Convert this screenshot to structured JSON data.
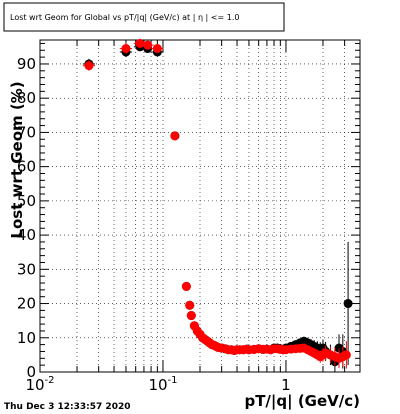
{
  "chart_data": {
    "type": "scatter",
    "title": "Lost wrt Geom for Global vs pT/|q| (GeV/c) at | η | <= 1.0",
    "xlabel": "pT/|q| (GeV/c)",
    "ylabel": "Lost wrt Geom (%)",
    "xscale": "log",
    "xlim": [
      0.01,
      4.0
    ],
    "ylim": [
      0,
      97
    ],
    "grid": true,
    "x_tick_labels": [
      {
        "value": 0.01,
        "base": "10",
        "exp": "-2"
      },
      {
        "value": 0.1,
        "base": "10",
        "exp": "-1"
      },
      {
        "value": 1,
        "base": "1",
        "exp": ""
      }
    ],
    "y_ticks": [
      0,
      10,
      20,
      30,
      40,
      50,
      60,
      70,
      80,
      90
    ],
    "colors": {
      "series_a": "#000000",
      "series_b": "#ff0000"
    },
    "series": [
      {
        "color": "black",
        "x": [
          0.025,
          0.05,
          0.065,
          0.075,
          0.09,
          0.125,
          0.155,
          0.165,
          0.17,
          0.18,
          0.19,
          0.2,
          0.21,
          0.22,
          0.23,
          0.24,
          0.25,
          0.26,
          0.27,
          0.28,
          0.3,
          0.32,
          0.34,
          0.36,
          0.38,
          0.4,
          0.42,
          0.45,
          0.48,
          0.5,
          0.55,
          0.6,
          0.65,
          0.7,
          0.75,
          0.8,
          0.85,
          0.9,
          0.95,
          1.0,
          1.1,
          1.2,
          1.3,
          1.4,
          1.5,
          1.6,
          1.7,
          1.8,
          1.9,
          2.0,
          2.1,
          2.3,
          2.5,
          2.7,
          2.9,
          3.2
        ],
        "y": [
          90.0,
          93.5,
          95.0,
          94.5,
          93.5,
          69.0,
          25.0,
          19.5,
          16.5,
          13.5,
          12.0,
          11.0,
          10.0,
          9.5,
          9.0,
          8.5,
          8.0,
          7.8,
          7.5,
          7.2,
          7.0,
          6.8,
          6.5,
          6.5,
          6.3,
          6.5,
          6.5,
          6.5,
          6.7,
          6.5,
          6.6,
          6.8,
          6.6,
          6.7,
          6.5,
          7.0,
          7.0,
          6.8,
          6.5,
          7.0,
          7.5,
          8.0,
          8.5,
          9.0,
          8.5,
          8.0,
          7.5,
          7.0,
          6.5,
          7.0,
          6.0,
          5.0,
          3.0,
          7.0,
          6.0,
          20.0
        ],
        "yerr": [
          1.5,
          1.5,
          1.0,
          1.0,
          1.2,
          1.0,
          0.8,
          0.8,
          0.6,
          0.5,
          0.5,
          0.5,
          0.5,
          0.4,
          0.4,
          0.4,
          0.4,
          0.3,
          0.3,
          0.3,
          0.3,
          0.3,
          0.3,
          0.3,
          0.3,
          0.3,
          0.3,
          0.3,
          0.3,
          0.3,
          0.3,
          0.3,
          0.3,
          0.4,
          0.4,
          0.4,
          0.5,
          0.5,
          0.5,
          0.6,
          0.8,
          1.0,
          1.2,
          1.3,
          1.5,
          1.6,
          1.8,
          2.0,
          2.2,
          2.5,
          2.8,
          3.0,
          3.5,
          4.0,
          5.0,
          18.0
        ]
      },
      {
        "color": "red",
        "x": [
          0.025,
          0.05,
          0.065,
          0.075,
          0.09,
          0.125,
          0.155,
          0.165,
          0.17,
          0.18,
          0.19,
          0.2,
          0.21,
          0.22,
          0.23,
          0.24,
          0.25,
          0.26,
          0.27,
          0.28,
          0.3,
          0.32,
          0.34,
          0.36,
          0.38,
          0.4,
          0.42,
          0.45,
          0.48,
          0.5,
          0.55,
          0.6,
          0.65,
          0.7,
          0.75,
          0.8,
          0.85,
          0.9,
          0.95,
          1.0,
          1.1,
          1.2,
          1.3,
          1.4,
          1.5,
          1.6,
          1.7,
          1.8,
          1.9,
          2.0,
          2.1,
          2.3,
          2.5,
          2.7,
          2.9,
          3.1
        ],
        "y": [
          89.5,
          94.5,
          96.0,
          95.5,
          94.5,
          69.0,
          25.0,
          19.5,
          16.5,
          13.5,
          12.0,
          11.0,
          10.0,
          9.5,
          9.0,
          8.5,
          8.0,
          7.8,
          7.5,
          7.2,
          7.0,
          6.8,
          6.5,
          6.5,
          6.3,
          6.5,
          6.5,
          6.5,
          6.7,
          6.5,
          6.6,
          6.8,
          6.6,
          6.7,
          6.5,
          6.8,
          6.8,
          6.6,
          6.5,
          6.5,
          6.7,
          6.8,
          6.9,
          7.0,
          6.5,
          6.0,
          5.5,
          5.0,
          4.5,
          5.0,
          5.5,
          5.0,
          4.5,
          4.0,
          4.5,
          5.0
        ],
        "yerr": [
          1.5,
          1.5,
          1.0,
          1.0,
          1.2,
          1.0,
          0.8,
          0.8,
          0.6,
          0.5,
          0.5,
          0.5,
          0.5,
          0.4,
          0.4,
          0.4,
          0.4,
          0.3,
          0.3,
          0.3,
          0.3,
          0.3,
          0.3,
          0.3,
          0.3,
          0.3,
          0.3,
          0.3,
          0.3,
          0.3,
          0.3,
          0.3,
          0.3,
          0.4,
          0.4,
          0.4,
          0.5,
          0.5,
          0.5,
          0.6,
          0.7,
          0.8,
          0.9,
          1.0,
          1.1,
          1.2,
          1.4,
          1.6,
          1.8,
          2.0,
          2.2,
          2.4,
          2.6,
          2.8,
          3.0,
          4.0
        ]
      }
    ]
  },
  "footer": {
    "datestamp": "Thu Dec  3 12:33:57 2020"
  }
}
